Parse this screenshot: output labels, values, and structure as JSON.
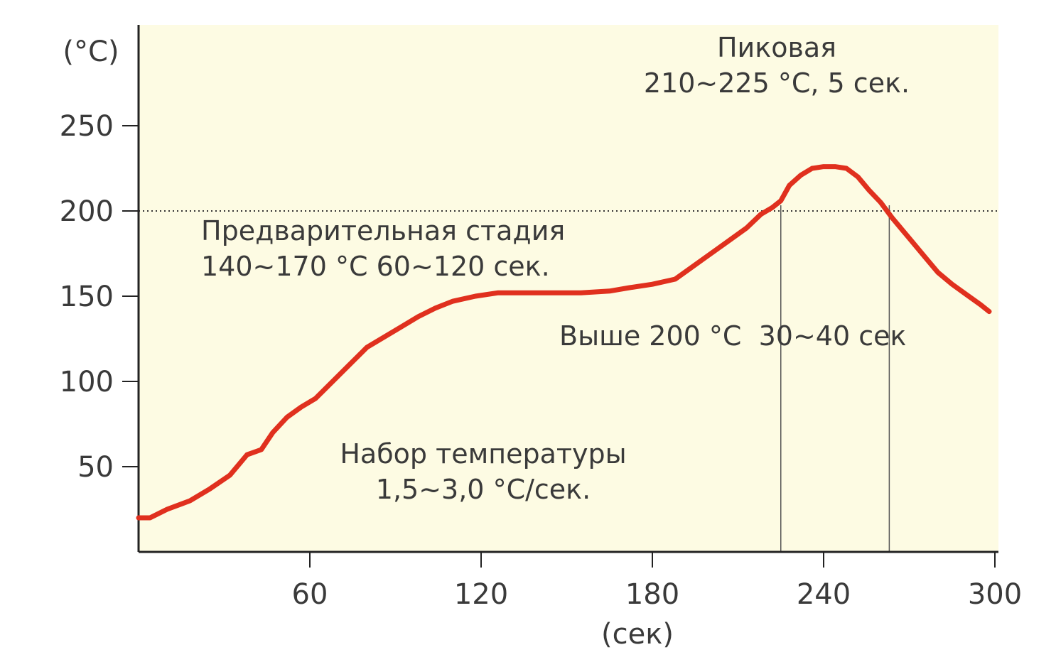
{
  "chart_data": {
    "type": "line",
    "title": "",
    "xlabel": "(сек)",
    "ylabel": "(°C)",
    "xlim": [
      0,
      300
    ],
    "ylim": [
      0,
      280
    ],
    "x_ticks": [
      60,
      120,
      180,
      240,
      300
    ],
    "y_ticks": [
      50,
      100,
      150,
      200,
      250
    ],
    "grid": false,
    "background_color": "#fdfbe3",
    "line_color": "#e0301e",
    "reference_line": {
      "y": 200,
      "style": "dotted"
    },
    "vertical_markers": [
      225,
      263
    ],
    "series": [
      {
        "x": [
          0,
          4,
          10,
          18,
          25,
          32,
          38,
          43,
          47,
          52,
          57,
          62,
          68,
          74,
          80,
          86,
          92,
          98,
          104,
          110,
          118,
          126,
          135,
          145,
          155,
          165,
          172,
          180,
          188,
          193,
          198,
          203,
          208,
          213,
          218,
          222,
          225,
          228,
          232,
          236,
          240,
          244,
          248,
          252,
          256,
          260,
          264,
          270,
          276,
          280,
          285,
          290,
          295,
          298
        ],
        "y": [
          20,
          20,
          25,
          30,
          37,
          45,
          57,
          60,
          70,
          79,
          85,
          90,
          100,
          110,
          120,
          126,
          132,
          138,
          143,
          147,
          150,
          152,
          152,
          152,
          152,
          153,
          155,
          157,
          160,
          166,
          172,
          178,
          184,
          190,
          198,
          202,
          206,
          215,
          221,
          225,
          226,
          226,
          225,
          220,
          212,
          205,
          196,
          184,
          172,
          164,
          157,
          151,
          145,
          141
        ]
      }
    ],
    "annotations": [
      {
        "id": "peak",
        "lines": [
          "Пиковая",
          "210~225 °C, 5 сек."
        ]
      },
      {
        "id": "preheat",
        "lines": [
          "Предварительная стадия",
          "140~170 °C 60~120 сек."
        ]
      },
      {
        "id": "above200",
        "lines": [
          "Выше 200 °C  30~40 сек"
        ]
      },
      {
        "id": "ramp",
        "lines": [
          "Набор температуры",
          "1,5~3,0 °C/сек."
        ]
      }
    ]
  }
}
